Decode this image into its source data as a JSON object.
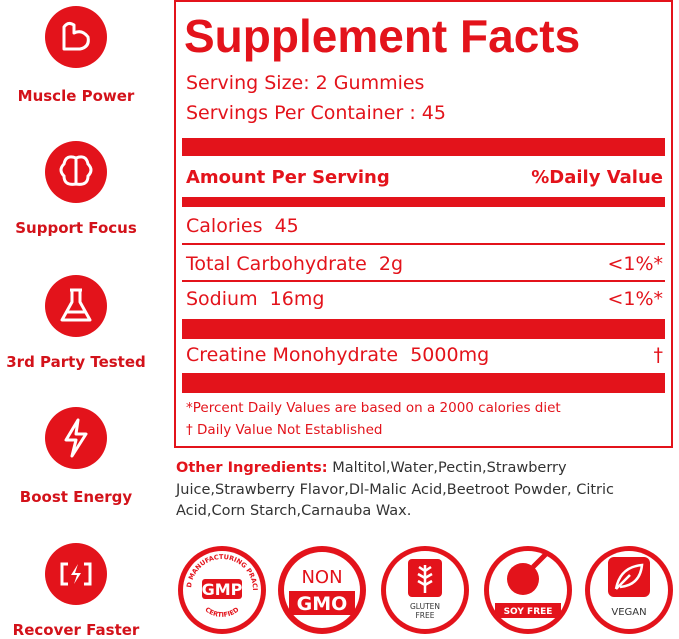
{
  "features": [
    "Muscle Power",
    "Support Focus",
    "3rd Party Tested",
    "Boost Energy",
    "Recover Faster"
  ],
  "facts": {
    "title": "Supplement Facts",
    "serving_size": "Serving Size: 2 Gummies",
    "servings_per_container": "Servings Per Container : 45",
    "header": {
      "amount": "Amount Per Serving",
      "daily_value": "%Daily Value"
    },
    "rows": [
      {
        "name": "Calories",
        "amount": "45",
        "dv": null
      },
      {
        "name": "Total Carbohydrate",
        "amount": "2g",
        "dv": "<1%*"
      },
      {
        "name": "Sodium",
        "amount": "16mg",
        "dv": "<1%*"
      },
      {
        "name": "Creatine Monohydrate",
        "amount": "5000mg",
        "dv": "†"
      }
    ],
    "footnotes": [
      "*Percent Daily Values are based on a 2000 calories diet",
      "† Daily Value Not Established"
    ]
  },
  "ingredients": {
    "label": "Other Ingredients:",
    "text": "Maltitol,Water,Pectin,Strawberry Juice,Strawberry Flavor,Dl-Malic Acid,Beetroot Powder, Citric Acid,Corn Starch,Carnauba Wax."
  },
  "badges": [
    {
      "ring": "GOOD MANUFACTURING PRACITCE",
      "main": "GMP",
      "sub": "CERTIFIED"
    },
    {
      "top": "NON",
      "main": "GMO"
    },
    {
      "line1": "GLUTEN",
      "line2": "FREE"
    },
    {
      "label": "SOY FREE"
    },
    {
      "label": "VEGAN"
    }
  ]
}
